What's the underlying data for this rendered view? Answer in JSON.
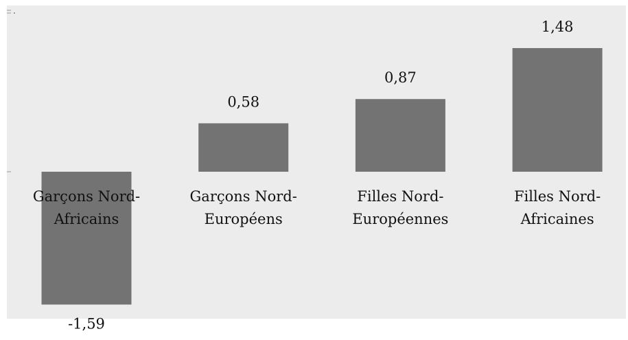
{
  "colors": {
    "background": "#ffffff",
    "plot_area": "#ececec",
    "bar": "#737373",
    "text": "#111111"
  },
  "chart_data": {
    "type": "bar",
    "categories": [
      "Garçons Nord-Africains",
      "Garçons Nord-Européens",
      "Filles Nord-Européennes",
      "Filles Nord-Africaines"
    ],
    "category_label_lines": [
      [
        "Garçons Nord-",
        "Africains"
      ],
      [
        "Garçons Nord-",
        "Européens"
      ],
      [
        "Filles Nord-",
        "Européennes"
      ],
      [
        "Filles Nord-",
        "Africaines"
      ]
    ],
    "values": [
      -1.59,
      0.58,
      0.87,
      1.48
    ],
    "data_labels": [
      "-1,59",
      "0,58",
      "0,87",
      "1,48"
    ],
    "ylim": [
      -1.59,
      1.48
    ],
    "grid": false,
    "legend": "none"
  }
}
